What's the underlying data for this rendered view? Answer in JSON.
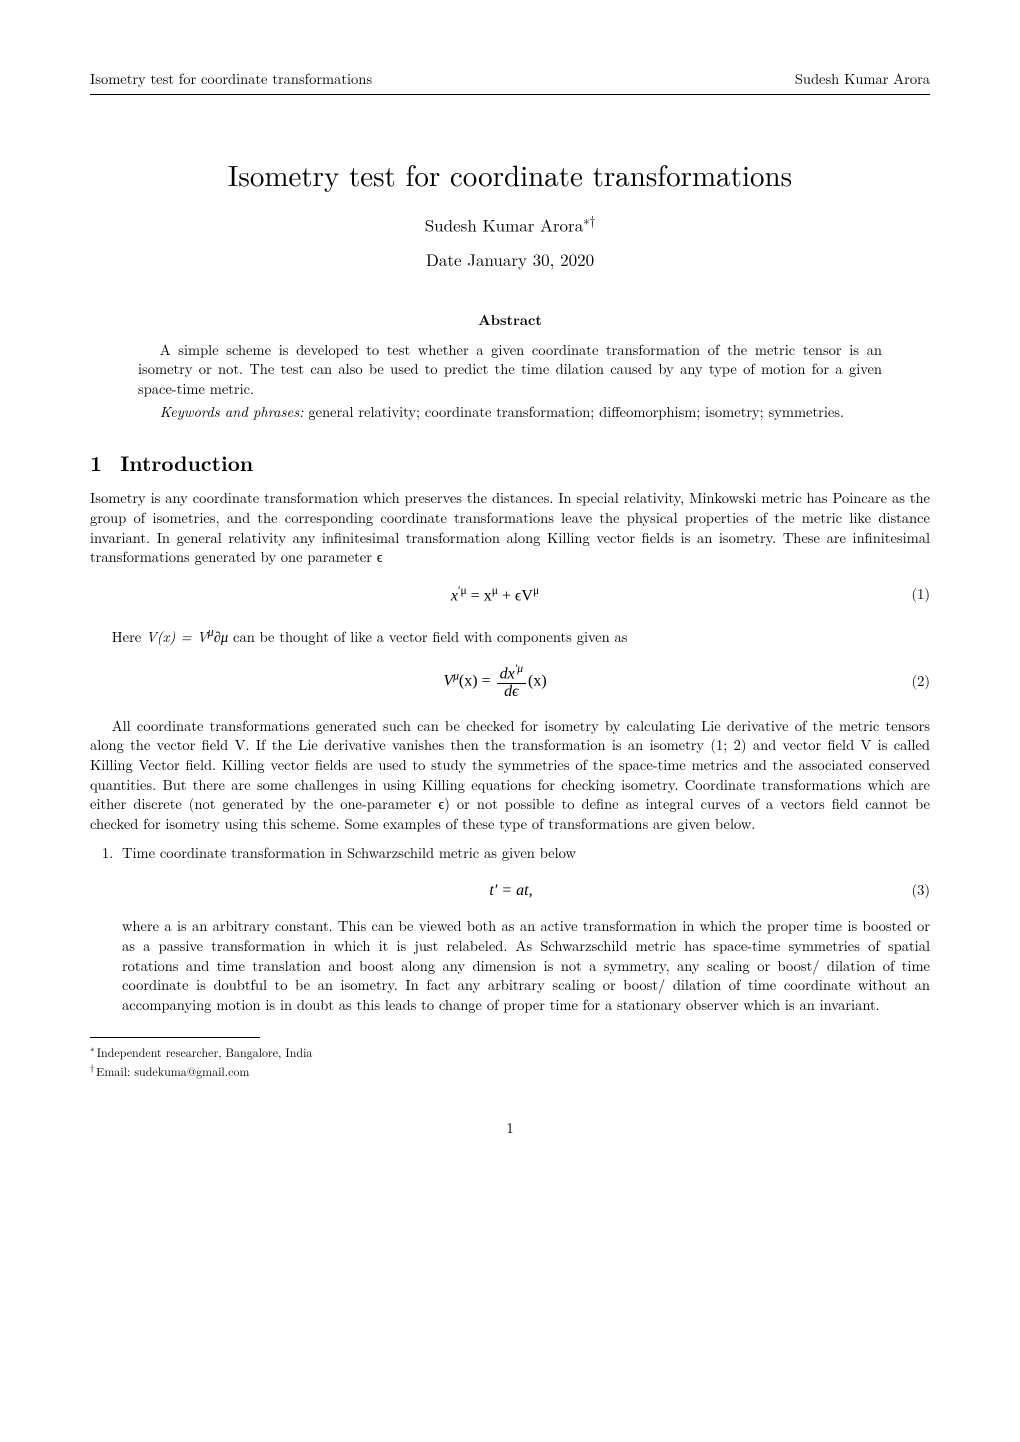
{
  "running_header": {
    "left": "Isometry test for coordinate transformations",
    "right": "Sudesh Kumar Arora"
  },
  "title": "Isometry test for coordinate transformations",
  "author": {
    "name": "Sudesh Kumar Arora",
    "marks": "∗†"
  },
  "date": "Date January 30, 2020",
  "abstract": {
    "heading": "Abstract",
    "p1": "A simple scheme is developed to test whether a given coordinate transformation of the metric tensor is an isometry or not. The test can also be used to predict the time dilation caused by any type of motion for a given space-time metric.",
    "keywords_label": "Keywords and phrases:",
    "keywords": " general relativity; coordinate transformation; diffeomorphism; isometry; symmetries."
  },
  "section1": {
    "num": "1",
    "title": "Introduction",
    "p1": "Isometry is any coordinate transformation which preserves the distances. In special relativity, Minkowski metric has Poincare as the group of isometries, and the corresponding coordinate transformations leave the physical properties of the metric like distance invariant. In general relativity any infinitesimal transformation along Killing vector fields is an isometry. These are infinitesimal transformations generated by one parameter ϵ",
    "eq1": {
      "content_pre": "x",
      "content_sup1": "′μ",
      "content_eq": " = x",
      "content_sup2": "μ",
      "content_plus": " + ϵV",
      "content_sup3": "μ",
      "num": "(1)"
    },
    "p2_a": "Here ",
    "p2_b": "V(x) = V",
    "p2_sup": "μ",
    "p2_c": "∂μ",
    "p2_d": " can be thought of like a vector field with components given as",
    "eq2": {
      "lhs_a": "V",
      "lhs_sup": "μ",
      "lhs_b": "(x) = ",
      "frac_num_a": "dx",
      "frac_num_sup": "′μ",
      "frac_den": "dϵ",
      "rhs": "(x)",
      "num": "(2)"
    },
    "p3": "All coordinate transformations generated such can be checked for isometry by calculating Lie derivative of the metric tensors along the vector field V. If the Lie derivative vanishes then the transformation is an isometry (1; 2) and vector field V is called Killing Vector field. Killing vector fields are used to study the symmetries of the space-time metrics and the associated conserved quantities. But there are some challenges in using Killing equations for checking isometry. Coordinate transformations which are either discrete (not generated by the one-parameter ϵ) or not possible to define as integral curves of a vectors field cannot be checked for isometry using this scheme. Some examples of these type of transformations are given below.",
    "item1_lead": "Time coordinate transformation in Schwarzschild metric as given below",
    "eq3": {
      "content": "t′ = at,",
      "num": "(3)"
    },
    "item1_cont": "where a is an arbitrary constant. This can be viewed both as an active transformation in which the proper time is boosted or as a passive transformation in which it is just relabeled. As Schwarzschild metric has space-time symmetries of spatial rotations and time translation and boost along any dimension is not a symmetry, any scaling or boost/ dilation of time coordinate is doubtful to be an isometry. In fact any arbitrary scaling or boost/ dilation of time coordinate without an accompanying motion is in doubt as this leads to change of proper time for a stationary observer which is an invariant."
  },
  "footnotes": {
    "f1_mark": "∗",
    "f1_text": "Independent researcher, Bangalore, India",
    "f2_mark": "†",
    "f2_text": "Email: sudekuma@gmail.com"
  },
  "page_number": "1"
}
